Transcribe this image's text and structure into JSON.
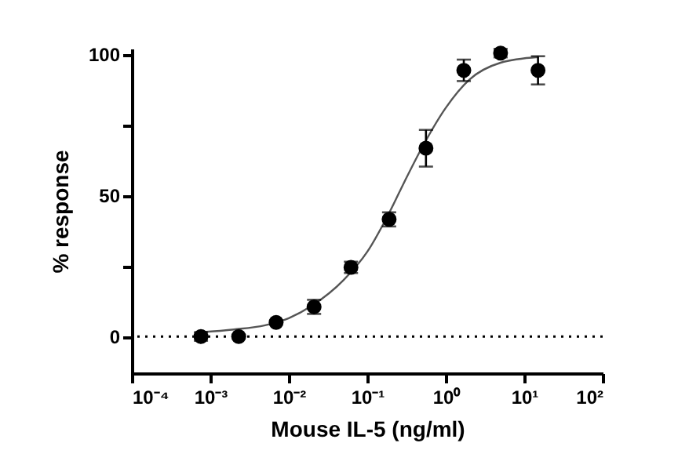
{
  "chart_data": {
    "type": "scatter",
    "xlabel": "Mouse IL-5 (ng/ml)",
    "ylabel": "% response",
    "log": "x",
    "grid": false,
    "xlim": [
      0.0001,
      100
    ],
    "xticks": [
      {
        "value": 0.0001,
        "label": "10⁻⁴"
      },
      {
        "value": 0.001,
        "label": "10⁻³"
      },
      {
        "value": 0.01,
        "label": "10⁻²"
      },
      {
        "value": 0.1,
        "label": "10⁻¹"
      },
      {
        "value": 1,
        "label": "10⁰"
      },
      {
        "value": 10,
        "label": "10¹"
      },
      {
        "value": 100,
        "label": "10²"
      }
    ],
    "ylim": [
      -13,
      102
    ],
    "yticks": [
      0,
      {
        "value": 25,
        "label": null
      },
      50,
      {
        "value": 75,
        "label": null
      },
      100
    ],
    "ref_lines": [
      {
        "axis": "y",
        "value": 0,
        "color": "#000000",
        "line_style": "dotted"
      }
    ],
    "series": [
      {
        "type": "line",
        "color": "#555555",
        "x": [
          0.00076,
          0.002,
          0.005,
          0.01,
          0.02,
          0.05,
          0.1,
          0.2,
          0.3,
          0.5,
          1,
          2,
          5,
          15
        ],
        "values": [
          1.5,
          2.5,
          4,
          6.5,
          11,
          20,
          30,
          45,
          55,
          67,
          81,
          91,
          97,
          99
        ]
      },
      {
        "marker": "circle",
        "color": "#000000",
        "x": [
          0.00076,
          0.0023,
          0.0069,
          0.021,
          0.062,
          0.19,
          0.56,
          1.7,
          5,
          15
        ],
        "values": [
          0,
          0,
          5,
          10.5,
          24.5,
          41.5,
          66.7,
          94.3,
          100.4,
          94.3
        ],
        "errors": [
          1.5,
          null,
          null,
          2.5,
          2,
          2.5,
          6.5,
          3.8,
          1.5,
          5
        ]
      }
    ]
  }
}
